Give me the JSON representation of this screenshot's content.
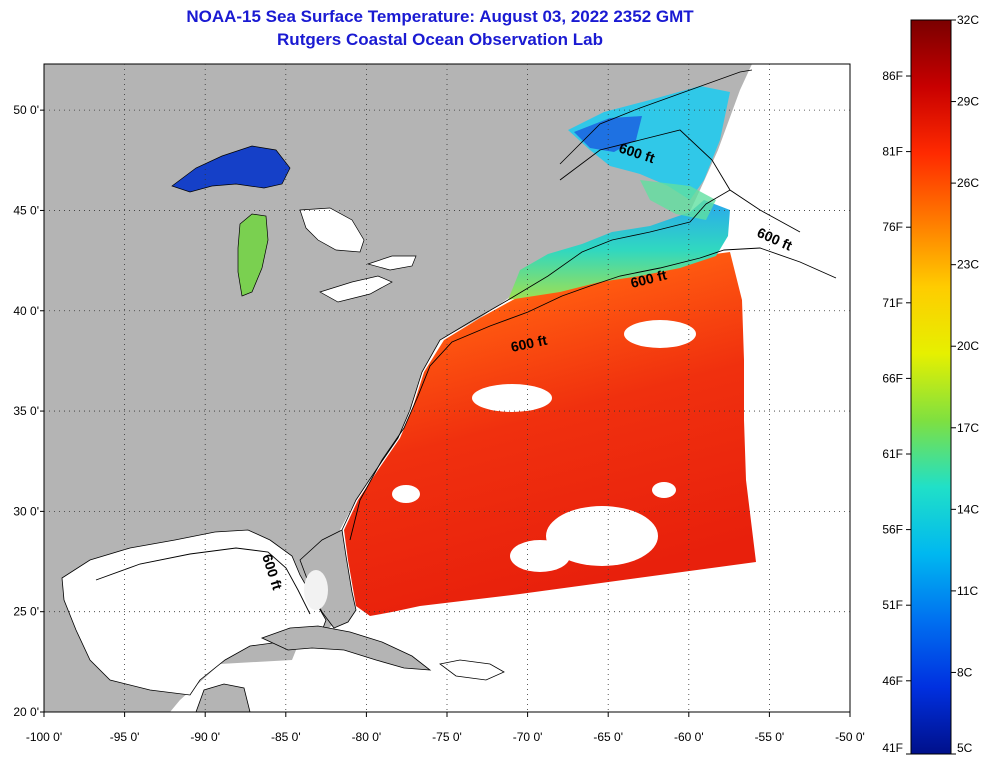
{
  "title": "NOAA-15 Sea Surface Temperature:  August 03, 2022 2352 GMT",
  "subtitle": "Rutgers Coastal Ocean Observation Lab",
  "map": {
    "lon_range": [
      -100,
      -50
    ],
    "lat_range": [
      20,
      52.3
    ],
    "lon_ticks": [
      {
        "value": -100,
        "label": "-100 0'"
      },
      {
        "value": -95,
        "label": "-95 0'"
      },
      {
        "value": -90,
        "label": "-90 0'"
      },
      {
        "value": -85,
        "label": "-85 0'"
      },
      {
        "value": -80,
        "label": "-80 0'"
      },
      {
        "value": -75,
        "label": "-75 0'"
      },
      {
        "value": -70,
        "label": "-70 0'"
      },
      {
        "value": -65,
        "label": "-65 0'"
      },
      {
        "value": -60,
        "label": "-60 0'"
      },
      {
        "value": -55,
        "label": "-55 0'"
      },
      {
        "value": -50,
        "label": "-50 0'"
      }
    ],
    "lat_ticks": [
      {
        "value": 20,
        "label": "20 0'"
      },
      {
        "value": 25,
        "label": "25 0'"
      },
      {
        "value": 30,
        "label": "30 0'"
      },
      {
        "value": 35,
        "label": "35 0'"
      },
      {
        "value": 40,
        "label": "40 0'"
      },
      {
        "value": 45,
        "label": "45 0'"
      },
      {
        "value": 50,
        "label": "50 0'"
      }
    ],
    "grid": true,
    "contour_labels": [
      "600 ft",
      "600 ft",
      "600 ft",
      "600 ft",
      "600 ft"
    ],
    "colors": {
      "land": "#b4b4b4",
      "cloud": "#ffffff",
      "warm": "#ee2a0e",
      "cool": "#22c8e8",
      "cold": "#1030c8"
    }
  },
  "colorbar": {
    "celsius_labels": [
      "32C",
      "29C",
      "26C",
      "23C",
      "20C",
      "17C",
      "14C",
      "11C",
      "8C",
      "5C"
    ],
    "fahrenheit_labels": [
      "86F",
      "81F",
      "76F",
      "71F",
      "66F",
      "61F",
      "56F",
      "51F",
      "46F",
      "41F"
    ],
    "stops": [
      "#7a0000",
      "#c80000",
      "#ff2a00",
      "#ff7a00",
      "#ffcc00",
      "#e6f000",
      "#7fe040",
      "#20e0c8",
      "#00b8f0",
      "#0070f0",
      "#0030e0",
      "#00108a"
    ]
  }
}
